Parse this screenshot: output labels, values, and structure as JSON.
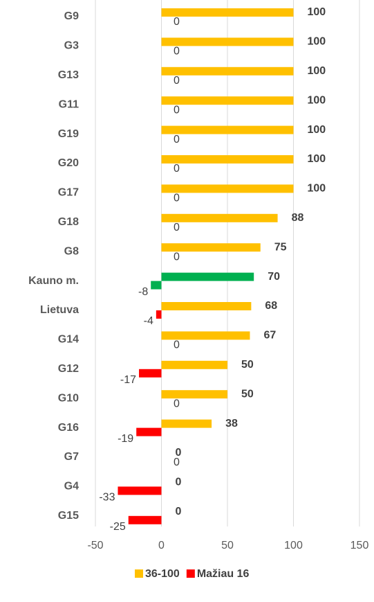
{
  "chart_data": {
    "type": "hbar",
    "categories": [
      "G9",
      "G3",
      "G13",
      "G11",
      "G19",
      "G20",
      "G17",
      "G18",
      "G8",
      "Kauno m.",
      "Lietuva",
      "G14",
      "G12",
      "G10",
      "G16",
      "G7",
      "G4",
      "G15"
    ],
    "series": [
      {
        "name": "36-100",
        "color": "#ffc000",
        "values": [
          100,
          100,
          100,
          100,
          100,
          100,
          100,
          88,
          75,
          70,
          68,
          67,
          50,
          50,
          38,
          0,
          0,
          0
        ]
      },
      {
        "name": "Mažiau 16",
        "color": "#ff0000",
        "values": [
          0,
          0,
          0,
          0,
          0,
          0,
          0,
          0,
          0,
          -8,
          -4,
          0,
          -17,
          0,
          -19,
          0,
          -33,
          -25
        ]
      }
    ],
    "highlight_index": 9,
    "highlight_color": "#00b050",
    "xlim": [
      -50,
      150
    ],
    "xticks": [
      -50,
      0,
      50,
      100,
      150
    ],
    "grid": true,
    "legend": "bottom"
  }
}
